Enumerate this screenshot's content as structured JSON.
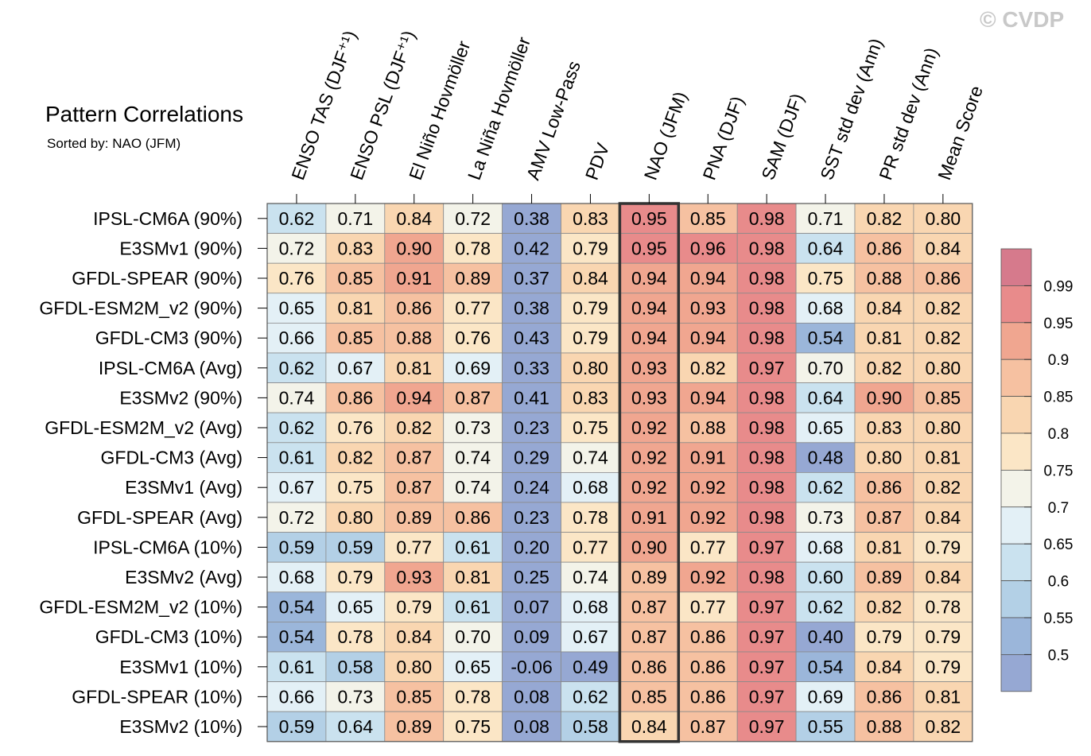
{
  "chart_data": {
    "type": "heatmap",
    "title": "Pattern Correlations",
    "subtitle": "Sorted by: NAO (JFM)",
    "watermark": "© CVDP",
    "columns": [
      "ENSO TAS (DJF⁺¹)",
      "ENSO PSL (DJF⁺¹)",
      "El Niño Hovmöller",
      "La Niña Hovmöller",
      "AMV Low-Pass",
      "PDV",
      "NAO (JFM)",
      "PNA (DJF)",
      "SAM (DJF)",
      "SST std dev (Ann)",
      "PR std dev (Ann)",
      "Mean Score"
    ],
    "rows": [
      "IPSL-CM6A (90%)",
      "E3SMv1 (90%)",
      "GFDL-SPEAR (90%)",
      "GFDL-ESM2M_v2 (90%)",
      "GFDL-CM3 (90%)",
      "IPSL-CM6A (Avg)",
      "E3SMv2 (90%)",
      "GFDL-ESM2M_v2 (Avg)",
      "GFDL-CM3 (Avg)",
      "E3SMv1 (Avg)",
      "GFDL-SPEAR (Avg)",
      "IPSL-CM6A (10%)",
      "E3SMv2 (Avg)",
      "GFDL-ESM2M_v2 (10%)",
      "GFDL-CM3 (10%)",
      "E3SMv1 (10%)",
      "GFDL-SPEAR (10%)",
      "E3SMv2 (10%)"
    ],
    "values": [
      [
        "0.62",
        "0.71",
        "0.84",
        "0.72",
        "0.38",
        "0.83",
        "0.95",
        "0.85",
        "0.98",
        "0.71",
        "0.82",
        "0.80"
      ],
      [
        "0.72",
        "0.83",
        "0.90",
        "0.78",
        "0.42",
        "0.79",
        "0.95",
        "0.96",
        "0.98",
        "0.64",
        "0.86",
        "0.84"
      ],
      [
        "0.76",
        "0.85",
        "0.91",
        "0.89",
        "0.37",
        "0.84",
        "0.94",
        "0.94",
        "0.98",
        "0.75",
        "0.88",
        "0.86"
      ],
      [
        "0.65",
        "0.81",
        "0.86",
        "0.77",
        "0.38",
        "0.79",
        "0.94",
        "0.93",
        "0.98",
        "0.68",
        "0.84",
        "0.82"
      ],
      [
        "0.66",
        "0.85",
        "0.88",
        "0.76",
        "0.43",
        "0.79",
        "0.94",
        "0.94",
        "0.98",
        "0.54",
        "0.81",
        "0.82"
      ],
      [
        "0.62",
        "0.67",
        "0.81",
        "0.69",
        "0.33",
        "0.80",
        "0.93",
        "0.82",
        "0.97",
        "0.70",
        "0.82",
        "0.80"
      ],
      [
        "0.74",
        "0.86",
        "0.94",
        "0.87",
        "0.41",
        "0.83",
        "0.93",
        "0.94",
        "0.98",
        "0.64",
        "0.90",
        "0.85"
      ],
      [
        "0.62",
        "0.76",
        "0.82",
        "0.73",
        "0.23",
        "0.75",
        "0.92",
        "0.88",
        "0.98",
        "0.65",
        "0.83",
        "0.80"
      ],
      [
        "0.61",
        "0.82",
        "0.87",
        "0.74",
        "0.29",
        "0.74",
        "0.92",
        "0.91",
        "0.98",
        "0.48",
        "0.80",
        "0.81"
      ],
      [
        "0.67",
        "0.75",
        "0.87",
        "0.74",
        "0.24",
        "0.68",
        "0.92",
        "0.92",
        "0.98",
        "0.62",
        "0.86",
        "0.82"
      ],
      [
        "0.72",
        "0.80",
        "0.89",
        "0.86",
        "0.23",
        "0.78",
        "0.91",
        "0.92",
        "0.98",
        "0.73",
        "0.87",
        "0.84"
      ],
      [
        "0.59",
        "0.59",
        "0.77",
        "0.61",
        "0.20",
        "0.77",
        "0.90",
        "0.77",
        "0.97",
        "0.68",
        "0.81",
        "0.79"
      ],
      [
        "0.68",
        "0.79",
        "0.93",
        "0.81",
        "0.25",
        "0.74",
        "0.89",
        "0.92",
        "0.98",
        "0.60",
        "0.89",
        "0.84"
      ],
      [
        "0.54",
        "0.65",
        "0.79",
        "0.61",
        "0.07",
        "0.68",
        "0.87",
        "0.77",
        "0.97",
        "0.62",
        "0.82",
        "0.78"
      ],
      [
        "0.54",
        "0.78",
        "0.84",
        "0.70",
        "0.09",
        "0.67",
        "0.87",
        "0.86",
        "0.97",
        "0.40",
        "0.79",
        "0.79"
      ],
      [
        "0.61",
        "0.58",
        "0.80",
        "0.65",
        "-0.06",
        "0.49",
        "0.86",
        "0.86",
        "0.97",
        "0.54",
        "0.84",
        "0.79"
      ],
      [
        "0.66",
        "0.73",
        "0.85",
        "0.78",
        "0.08",
        "0.62",
        "0.85",
        "0.86",
        "0.97",
        "0.69",
        "0.86",
        "0.81"
      ],
      [
        "0.59",
        "0.64",
        "0.89",
        "0.75",
        "0.08",
        "0.58",
        "0.84",
        "0.87",
        "0.97",
        "0.55",
        "0.88",
        "0.82"
      ]
    ],
    "highlighted_column": "NAO (JFM)",
    "colorbar": {
      "labels": [
        "0.99",
        "0.95",
        "0.9",
        "0.85",
        "0.8",
        "0.75",
        "0.7",
        "0.65",
        "0.6",
        "0.55",
        "0.5"
      ],
      "colors": [
        "#d67a8c",
        "#e88b8b",
        "#f0a690",
        "#f6c1a1",
        "#f9d6b1",
        "#fbe6c6",
        "#f3f3e9",
        "#e3f0f6",
        "#cae2ef",
        "#b3d0e6",
        "#9bb6da",
        "#96a8d3"
      ]
    }
  }
}
